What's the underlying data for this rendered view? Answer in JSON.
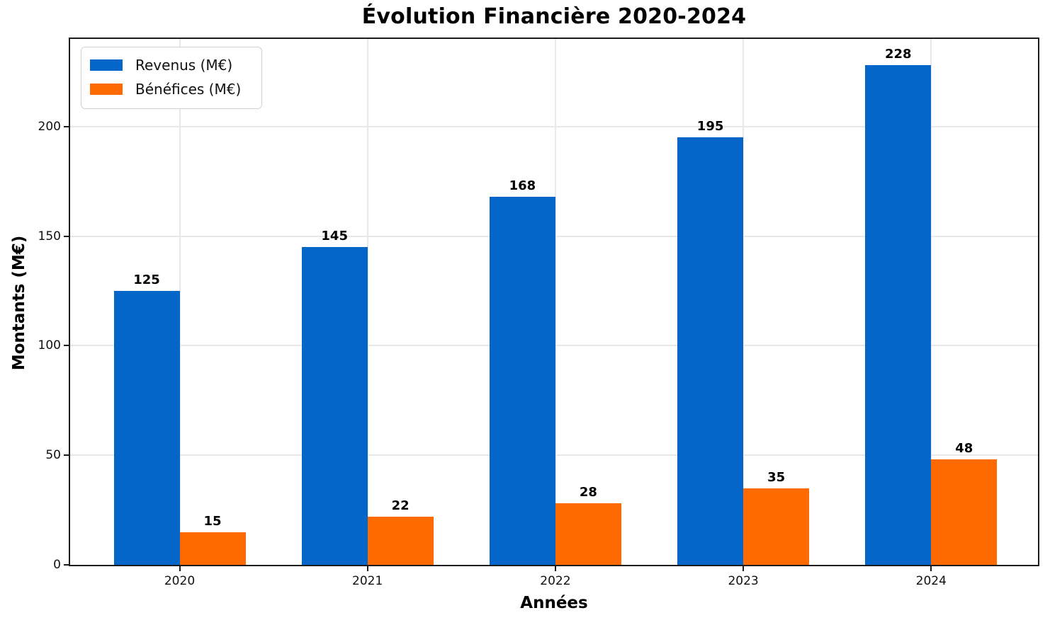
{
  "chart_data": {
    "type": "bar",
    "title": "Évolution Financière 2020-2024",
    "xlabel": "Années",
    "ylabel": "Montants (M€)",
    "categories": [
      "2020",
      "2021",
      "2022",
      "2023",
      "2024"
    ],
    "series": [
      {
        "name": "Revenus (M€)",
        "values": [
          125,
          145,
          168,
          195,
          228
        ],
        "color": "#0366C8"
      },
      {
        "name": "Bénéfices (M€)",
        "values": [
          15,
          22,
          28,
          35,
          48
        ],
        "color": "#FF6A00"
      }
    ],
    "yticks": [
      0,
      50,
      100,
      150,
      200
    ],
    "ylim": [
      0,
      240
    ],
    "grid": true,
    "legend_position": "upper left",
    "bar_value_labels": true
  }
}
